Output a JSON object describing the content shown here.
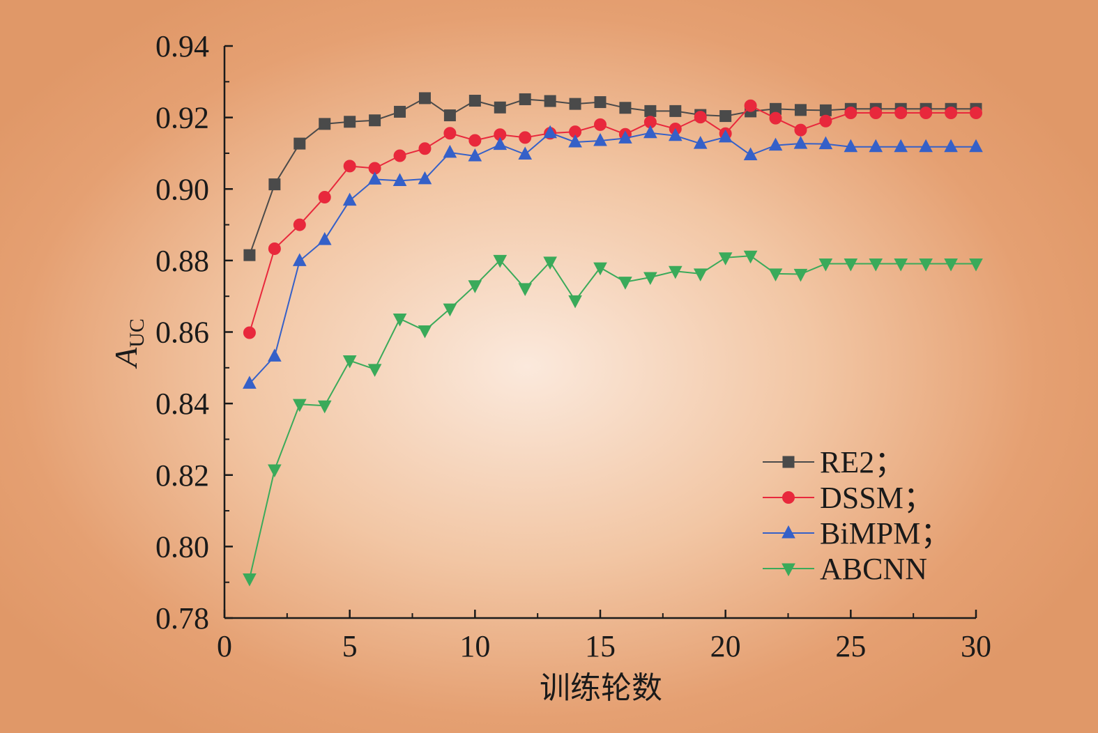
{
  "chart_data": {
    "type": "line",
    "title": "",
    "xlabel": "训练轮数",
    "ylabel_main": "A",
    "ylabel_sub": "UC",
    "xlim": [
      0,
      30
    ],
    "ylim": [
      0.78,
      0.94
    ],
    "xticks": [
      "0",
      "5",
      "10",
      "15",
      "20",
      "25",
      "30"
    ],
    "yticks": [
      "0.78",
      "0.80",
      "0.82",
      "0.84",
      "0.86",
      "0.88",
      "0.90",
      "0.92",
      "0.94"
    ],
    "grid": false,
    "legend_position": "bottom-right",
    "x": [
      1,
      2,
      3,
      4,
      5,
      6,
      7,
      8,
      9,
      10,
      11,
      12,
      13,
      14,
      15,
      16,
      17,
      18,
      19,
      20,
      21,
      22,
      23,
      24,
      25,
      26,
      27,
      28,
      29,
      30
    ],
    "series": [
      {
        "name": "RE2；",
        "marker": "square",
        "color": "#4a4a4a",
        "values": [
          0.8815,
          0.9013,
          0.9127,
          0.9182,
          0.9188,
          0.9192,
          0.9216,
          0.9254,
          0.9206,
          0.9247,
          0.9228,
          0.9251,
          0.9246,
          0.9238,
          0.9243,
          0.9227,
          0.9218,
          0.9218,
          0.9207,
          0.9204,
          0.9217,
          0.9224,
          0.9221,
          0.922,
          0.9224,
          0.9224,
          0.9224,
          0.9224,
          0.9224,
          0.9224
        ]
      },
      {
        "name": "DSSM；",
        "marker": "circle",
        "color": "#e8283c",
        "values": [
          0.8598,
          0.8833,
          0.89,
          0.8977,
          0.9064,
          0.9058,
          0.9093,
          0.9113,
          0.9156,
          0.9136,
          0.9152,
          0.9144,
          0.9156,
          0.916,
          0.918,
          0.9153,
          0.9187,
          0.9168,
          0.9201,
          0.9155,
          0.9233,
          0.9198,
          0.9165,
          0.919,
          0.9213,
          0.9213,
          0.9213,
          0.9213,
          0.9213,
          0.9213
        ]
      },
      {
        "name": "BiMPM；",
        "marker": "triangle-up",
        "color": "#3560c8",
        "values": [
          0.8456,
          0.8532,
          0.8799,
          0.8858,
          0.8968,
          0.9027,
          0.9023,
          0.9028,
          0.9102,
          0.9092,
          0.9124,
          0.9097,
          0.9157,
          0.9131,
          0.9135,
          0.9142,
          0.9157,
          0.9149,
          0.9127,
          0.9145,
          0.9095,
          0.9122,
          0.9127,
          0.9126,
          0.9118,
          0.9118,
          0.9118,
          0.9118,
          0.9118,
          0.9118
        ]
      },
      {
        "name": "ABCNN",
        "marker": "triangle-down",
        "color": "#3aaa5a",
        "values": [
          0.791,
          0.8215,
          0.8398,
          0.8394,
          0.852,
          0.8496,
          0.8637,
          0.8604,
          0.8665,
          0.873,
          0.8801,
          0.8722,
          0.8796,
          0.8688,
          0.878,
          0.874,
          0.8753,
          0.877,
          0.8763,
          0.8808,
          0.8813,
          0.8763,
          0.8762,
          0.8791,
          0.8791,
          0.8791,
          0.8791,
          0.8791,
          0.8791,
          0.8791
        ]
      }
    ]
  }
}
